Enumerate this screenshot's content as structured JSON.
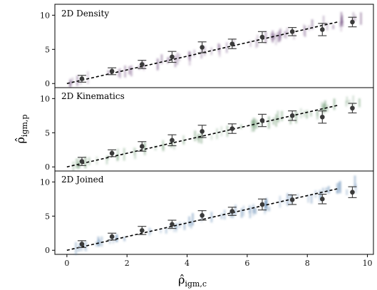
{
  "chart_data": [
    {
      "type": "scatter",
      "title": "2D Density",
      "color": "#6f4c7e",
      "xlim": [
        -0.4,
        10.2
      ],
      "ylim": [
        -0.6,
        11.6
      ],
      "yticks": [
        0,
        5,
        10
      ],
      "grid": false,
      "fit_line": {
        "x": [
          0,
          9
        ],
        "y": [
          0,
          9
        ],
        "style": "dashed"
      },
      "binned": {
        "x": [
          0.5,
          1.5,
          2.5,
          3.5,
          4.5,
          5.5,
          6.5,
          7.5,
          8.5,
          9.5
        ],
        "y": [
          0.7,
          1.8,
          2.8,
          3.9,
          5.3,
          5.8,
          6.8,
          7.6,
          7.9,
          9.0
        ],
        "err": [
          0.5,
          0.5,
          0.6,
          0.8,
          0.8,
          0.7,
          0.8,
          0.6,
          0.9,
          0.7
        ]
      }
    },
    {
      "type": "scatter",
      "title": "2D Kinematics",
      "color": "#5e8f63",
      "xlim": [
        -0.4,
        10.2
      ],
      "ylim": [
        -0.6,
        11.6
      ],
      "yticks": [
        0,
        5,
        10
      ],
      "grid": false,
      "fit_line": {
        "x": [
          0,
          9
        ],
        "y": [
          0,
          9
        ],
        "style": "dashed"
      },
      "binned": {
        "x": [
          0.5,
          1.5,
          2.5,
          3.5,
          4.5,
          5.5,
          6.5,
          7.5,
          8.5,
          9.5
        ],
        "y": [
          0.8,
          2.0,
          3.0,
          3.9,
          5.2,
          5.6,
          6.8,
          7.5,
          7.3,
          8.6
        ],
        "err": [
          0.6,
          0.5,
          0.7,
          0.8,
          0.9,
          0.7,
          0.9,
          0.7,
          0.9,
          0.7
        ]
      }
    },
    {
      "type": "scatter",
      "title": "2D Joined",
      "color": "#4a78a8",
      "xlim": [
        -0.4,
        10.2
      ],
      "ylim": [
        -0.6,
        11.6
      ],
      "yticks": [
        0,
        5,
        10
      ],
      "grid": false,
      "fit_line": {
        "x": [
          0,
          9
        ],
        "y": [
          0,
          9
        ],
        "style": "dashed"
      },
      "binned": {
        "x": [
          0.5,
          1.5,
          2.5,
          3.5,
          4.5,
          5.5,
          6.5,
          7.5,
          8.5,
          9.5
        ],
        "y": [
          0.9,
          2.0,
          2.9,
          3.8,
          5.1,
          5.7,
          6.7,
          7.4,
          7.5,
          8.5
        ],
        "err": [
          0.5,
          0.5,
          0.6,
          0.6,
          0.7,
          0.6,
          0.8,
          0.7,
          0.7,
          0.8
        ]
      }
    }
  ],
  "shared": {
    "xticks": [
      "0",
      "2",
      "4",
      "6",
      "8",
      "10"
    ],
    "yticks": [
      "0",
      "5",
      "10"
    ],
    "xlabel": "ρ̂",
    "xlabel_sub": "igm,c",
    "ylabel": "ρ̂",
    "ylabel_sub": "igm,p"
  }
}
